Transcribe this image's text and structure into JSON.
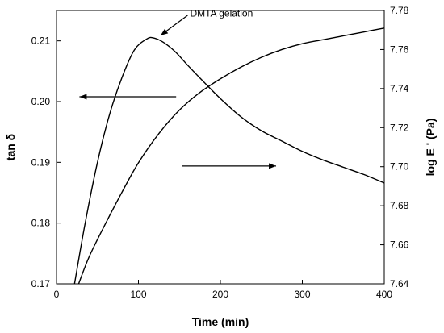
{
  "chart_data": {
    "type": "line",
    "xlabel": "Time (min)",
    "ylabel_left": "tan δ",
    "ylabel_right": "log E ' (Pa)",
    "xlim": [
      0,
      400
    ],
    "ylim_left": [
      0.17,
      0.215
    ],
    "ylim_right": [
      7.64,
      7.78
    ],
    "x_ticks": [
      "0",
      "100",
      "200",
      "300",
      "400"
    ],
    "y_ticks_left": [
      "0.17",
      "0.18",
      "0.19",
      "0.20",
      "0.21"
    ],
    "y_ticks_right": [
      "7.64",
      "7.66",
      "7.68",
      "7.70",
      "7.72",
      "7.74",
      "7.76",
      "7.78"
    ],
    "grid": false,
    "annotation": "DMTA gelation",
    "series": [
      {
        "axis": "left",
        "color": "#000000",
        "x": [
          22,
          35,
          50,
          65,
          80,
          95,
          110,
          118,
          130,
          145,
          160,
          180,
          200,
          225,
          250,
          275,
          300,
          325,
          350,
          375,
          400
        ],
        "y": [
          0.17,
          0.18,
          0.19,
          0.198,
          0.204,
          0.2085,
          0.2103,
          0.2105,
          0.2098,
          0.2082,
          0.206,
          0.2032,
          0.2005,
          0.1975,
          0.1952,
          0.1935,
          0.1918,
          0.1904,
          0.1892,
          0.188,
          0.1866
        ]
      },
      {
        "axis": "right",
        "color": "#000000",
        "x": [
          27,
          40,
          60,
          80,
          100,
          125,
          150,
          175,
          200,
          225,
          250,
          275,
          300,
          325,
          350,
          375,
          400
        ],
        "y": [
          7.64,
          7.654,
          7.671,
          7.687,
          7.702,
          7.717,
          7.729,
          7.738,
          7.745,
          7.751,
          7.756,
          7.76,
          7.763,
          7.765,
          7.767,
          7.769,
          7.771
        ]
      }
    ]
  }
}
